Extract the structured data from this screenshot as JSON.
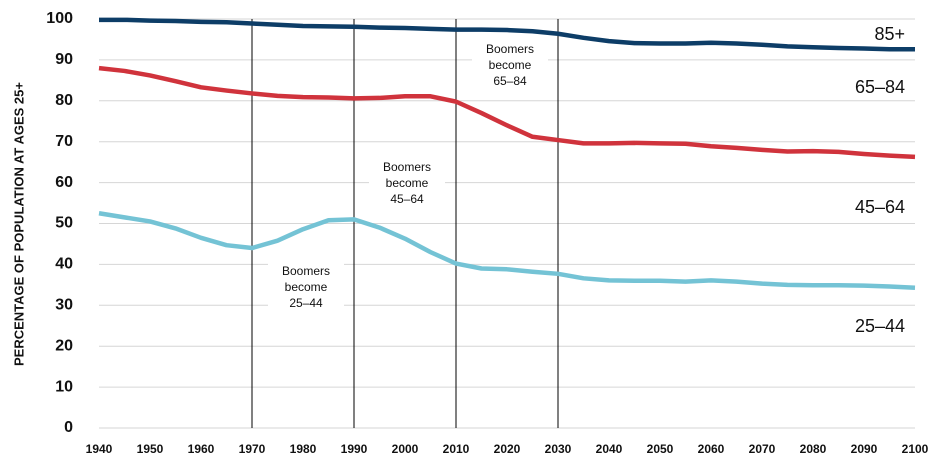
{
  "chart_data": {
    "type": "line",
    "y_label": "PERCENTAGE OF POPULATION AT AGES 25+",
    "x": [
      1940,
      1945,
      1950,
      1955,
      1960,
      1965,
      1970,
      1975,
      1980,
      1985,
      1990,
      1995,
      2000,
      2005,
      2010,
      2015,
      2020,
      2025,
      2030,
      2035,
      2040,
      2045,
      2050,
      2055,
      2060,
      2065,
      2070,
      2075,
      2080,
      2085,
      2090,
      2095,
      2100
    ],
    "series": [
      {
        "color": "#0d3d67",
        "values": [
          99.8,
          99.8,
          99.6,
          99.5,
          99.3,
          99.2,
          98.9,
          98.6,
          98.3,
          98.2,
          98.1,
          97.9,
          97.8,
          97.6,
          97.4,
          97.4,
          97.3,
          97.0,
          96.4,
          95.4,
          94.6,
          94.1,
          94.0,
          94.0,
          94.2,
          94.0,
          93.7,
          93.3,
          93.1,
          92.9,
          92.8,
          92.6,
          92.6
        ]
      },
      {
        "color": "#d0333c",
        "values": [
          88.0,
          87.3,
          86.2,
          84.8,
          83.3,
          82.5,
          81.8,
          81.2,
          80.9,
          80.8,
          80.6,
          80.7,
          81.1,
          81.1,
          79.8,
          77.0,
          74.0,
          71.2,
          70.4,
          69.6,
          69.6,
          69.7,
          69.6,
          69.5,
          68.9,
          68.5,
          68.0,
          67.6,
          67.7,
          67.5,
          67.0,
          66.6,
          66.3
        ]
      },
      {
        "color": "#74c3d5",
        "values": [
          52.5,
          51.5,
          50.5,
          48.8,
          46.5,
          44.7,
          44.0,
          45.8,
          48.6,
          50.8,
          51.0,
          49.0,
          46.3,
          43.0,
          40.2,
          39.0,
          38.8,
          38.2,
          37.7,
          36.6,
          36.1,
          36.0,
          36.0,
          35.8,
          36.1,
          35.8,
          35.3,
          35.0,
          34.9,
          34.9,
          34.8,
          34.6,
          34.3
        ]
      }
    ],
    "band_labels": [
      "85+",
      "65–84",
      "45–64",
      "25–44"
    ],
    "markers": [
      1970,
      1990,
      2010,
      2030
    ],
    "annotations": [
      [
        "Boomers",
        "become",
        "25–44"
      ],
      [
        "Boomers",
        "become",
        "45–64"
      ],
      [
        "Boomers",
        "become",
        "65–84"
      ]
    ],
    "xlim": [
      1940,
      2100
    ],
    "xticks": [
      1940,
      1950,
      1960,
      1970,
      1980,
      1990,
      2000,
      2010,
      2020,
      2030,
      2040,
      2050,
      2060,
      2070,
      2080,
      2090,
      2100
    ],
    "ylim": [
      0,
      100
    ],
    "yticks": [
      0,
      10,
      20,
      30,
      40,
      50,
      60,
      70,
      80,
      90,
      100
    ],
    "grid": true
  }
}
